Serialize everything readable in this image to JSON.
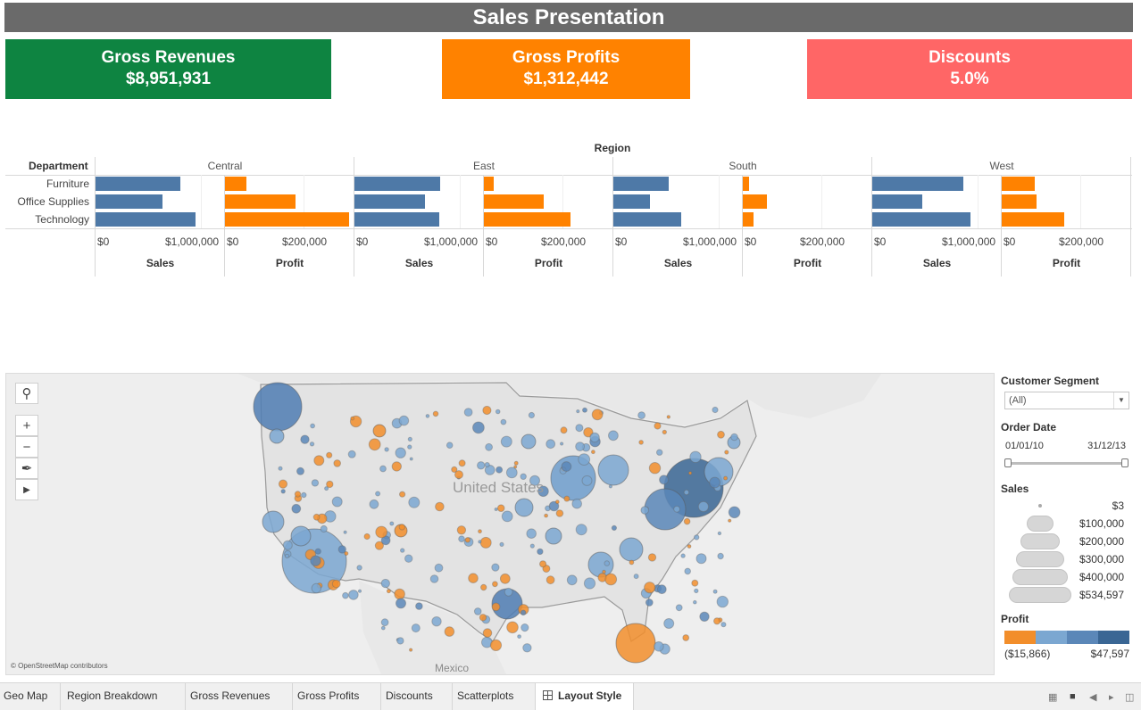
{
  "title": "Sales Presentation",
  "kpis": {
    "revenues": {
      "label": "Gross Revenues",
      "value": "$8,951,931",
      "color": "#0e8441"
    },
    "profits": {
      "label": "Gross Profits",
      "value": "$1,312,442",
      "color": "#ff8200"
    },
    "discounts": {
      "label": "Discounts",
      "value": "5.0%",
      "color": "#ff6666"
    }
  },
  "chart_data": {
    "type": "bar",
    "orientation": "horizontal",
    "title": "Region",
    "row_header": "Department",
    "categories": [
      "Furniture",
      "Office Supplies",
      "Technology"
    ],
    "regions": [
      "Central",
      "East",
      "South",
      "West"
    ],
    "measures": [
      "Sales",
      "Profit"
    ],
    "sales_ticks": [
      "$0",
      "$1,000,000"
    ],
    "profit_ticks": [
      "$0",
      "$200,000"
    ],
    "sales_xlim": [
      0,
      1200000
    ],
    "profit_xlim": [
      0,
      320000
    ],
    "colors": {
      "Sales": "#4e79a7",
      "Profit": "#ff8200"
    },
    "series": [
      {
        "region": "Central",
        "sales": [
          800000,
          630000,
          950000
        ],
        "profit": [
          55000,
          180000,
          318000
        ]
      },
      {
        "region": "East",
        "sales": [
          810000,
          670000,
          800000
        ],
        "profit": [
          25000,
          152000,
          222000
        ]
      },
      {
        "region": "South",
        "sales": [
          520000,
          350000,
          640000
        ],
        "profit": [
          17000,
          62000,
          28000
        ]
      },
      {
        "region": "West",
        "sales": [
          860000,
          470000,
          930000
        ],
        "profit": [
          85000,
          90000,
          160000
        ]
      }
    ]
  },
  "map": {
    "country_label": "United States",
    "neighbor_label": "Mexico",
    "attribution": "© OpenStreetMap contributors",
    "tools": [
      "search-icon",
      "zoom-in-icon",
      "zoom-out-icon",
      "pin-icon",
      "play-icon"
    ]
  },
  "filters": {
    "segment": {
      "label": "Customer Segment",
      "value": "(All)"
    },
    "order_date": {
      "label": "Order Date",
      "start": "01/01/10",
      "end": "31/12/13"
    }
  },
  "legends": {
    "sales": {
      "label": "Sales",
      "values": [
        "$3",
        "$100,000",
        "$200,000",
        "$300,000",
        "$400,000",
        "$534,597"
      ]
    },
    "profit": {
      "label": "Profit",
      "min": "($15,866)",
      "max": "$47,597",
      "colors": [
        "#f28e2b",
        "#7ba7d1",
        "#5b87b8",
        "#3a6694"
      ]
    }
  },
  "tabs": [
    "Geo Map",
    "Region Breakdown",
    "Gross Revenues",
    "Gross Profits",
    "Discounts",
    "Scatterplots",
    "Layout Style"
  ],
  "active_tab": "Layout Style"
}
